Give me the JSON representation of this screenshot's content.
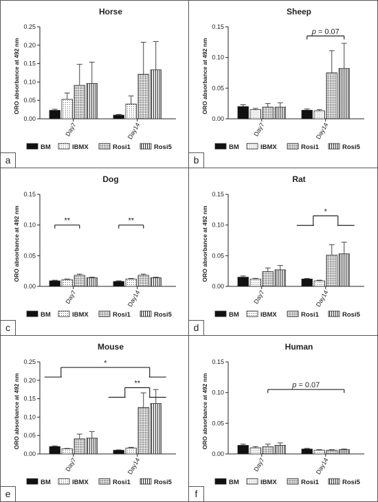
{
  "legend": [
    {
      "name": "BM",
      "pattern": "solid"
    },
    {
      "name": "IBMX",
      "pattern": "dots"
    },
    {
      "name": "Rosi1",
      "pattern": "grid"
    },
    {
      "name": "Rosi5",
      "pattern": "vlines"
    }
  ],
  "ylabel": "ORO absorbance at 492 nm",
  "chart_data": [
    {
      "panel": "a",
      "type": "bar",
      "title": "Horse",
      "categories": [
        "Day7",
        "Day14"
      ],
      "ylim": [
        0,
        0.25
      ],
      "yticks": [
        "0.00",
        "0.05",
        "0.10",
        "0.15",
        "0.20",
        "0.25"
      ],
      "series": [
        {
          "name": "BM",
          "values": [
            0.023,
            0.01
          ],
          "errors": [
            0.003,
            0.002
          ]
        },
        {
          "name": "IBMX",
          "values": [
            0.053,
            0.04
          ],
          "errors": [
            0.017,
            0.022
          ]
        },
        {
          "name": "Rosi1",
          "values": [
            0.091,
            0.121
          ],
          "errors": [
            0.057,
            0.087
          ]
        },
        {
          "name": "Rosi5",
          "values": [
            0.096,
            0.133
          ],
          "errors": [
            0.058,
            0.077
          ]
        }
      ],
      "annotations": []
    },
    {
      "panel": "b",
      "type": "bar",
      "title": "Sheep",
      "categories": [
        "Day7",
        "Day14"
      ],
      "ylim": [
        0,
        0.15
      ],
      "yticks": [
        "0.00",
        "0.05",
        "0.10",
        "0.15"
      ],
      "series": [
        {
          "name": "BM",
          "values": [
            0.02,
            0.014
          ],
          "errors": [
            0.003,
            0.002
          ]
        },
        {
          "name": "IBMX",
          "values": [
            0.015,
            0.013
          ],
          "errors": [
            0.002,
            0.002
          ]
        },
        {
          "name": "Rosi1",
          "values": [
            0.019,
            0.075
          ],
          "errors": [
            0.006,
            0.036
          ]
        },
        {
          "name": "Rosi5",
          "values": [
            0.019,
            0.082
          ],
          "errors": [
            0.007,
            0.041
          ]
        }
      ],
      "annotations": [
        {
          "text": "p = 0.07",
          "italic_p": true,
          "y": 0.135,
          "from": [
            1,
            0
          ],
          "to": [
            1,
            3
          ]
        }
      ]
    },
    {
      "panel": "c",
      "type": "bar",
      "title": "Dog",
      "categories": [
        "Day7",
        "Day14"
      ],
      "ylim": [
        0,
        0.15
      ],
      "yticks": [
        "0.00",
        "0.05",
        "0.10",
        "0.15"
      ],
      "series": [
        {
          "name": "BM",
          "values": [
            0.009,
            0.008
          ],
          "errors": [
            0.001,
            0.001
          ]
        },
        {
          "name": "IBMX",
          "values": [
            0.011,
            0.012
          ],
          "errors": [
            0.001,
            0.001
          ]
        },
        {
          "name": "Rosi1",
          "values": [
            0.018,
            0.018
          ],
          "errors": [
            0.002,
            0.002
          ]
        },
        {
          "name": "Rosi5",
          "values": [
            0.014,
            0.014
          ],
          "errors": [
            0.001,
            0.001
          ]
        }
      ],
      "annotations": [
        {
          "text": "**",
          "y": 0.1,
          "from": [
            0,
            0
          ],
          "to": [
            0,
            2
          ]
        },
        {
          "text": "**",
          "y": 0.1,
          "from": [
            1,
            0
          ],
          "to": [
            1,
            2
          ]
        }
      ]
    },
    {
      "panel": "d",
      "type": "bar",
      "title": "Rat",
      "categories": [
        "Day7",
        "Day14"
      ],
      "ylim": [
        0,
        0.15
      ],
      "yticks": [
        "0.00",
        "0.05",
        "0.10",
        "0.15"
      ],
      "series": [
        {
          "name": "BM",
          "values": [
            0.015,
            0.012
          ],
          "errors": [
            0.002,
            0.001
          ]
        },
        {
          "name": "IBMX",
          "values": [
            0.012,
            0.009
          ],
          "errors": [
            0.001,
            0.001
          ]
        },
        {
          "name": "Rosi1",
          "values": [
            0.024,
            0.051
          ],
          "errors": [
            0.006,
            0.017
          ]
        },
        {
          "name": "Rosi5",
          "values": [
            0.027,
            0.053
          ],
          "errors": [
            0.007,
            0.019
          ]
        }
      ],
      "annotations": [
        {
          "text": "*",
          "y": 0.115,
          "from": [
            1,
            0.5
          ],
          "to": [
            1,
            2.5
          ],
          "groups": true
        }
      ]
    },
    {
      "panel": "e",
      "type": "bar",
      "title": "Mouse",
      "categories": [
        "Day7",
        "Day14"
      ],
      "ylim": [
        0,
        0.25
      ],
      "yticks": [
        "0.00",
        "0.05",
        "0.10",
        "0.15",
        "0.20",
        "0.25"
      ],
      "series": [
        {
          "name": "BM",
          "values": [
            0.02,
            0.01
          ],
          "errors": [
            0.002,
            0.001
          ]
        },
        {
          "name": "IBMX",
          "values": [
            0.014,
            0.016
          ],
          "errors": [
            0.001,
            0.002
          ]
        },
        {
          "name": "Rosi1",
          "values": [
            0.041,
            0.126
          ],
          "errors": [
            0.013,
            0.04
          ]
        },
        {
          "name": "Rosi5",
          "values": [
            0.043,
            0.137
          ],
          "errors": [
            0.018,
            0.038
          ]
        }
      ],
      "annotations": [
        {
          "text": "*",
          "y": 0.235,
          "from": [
            0,
            0.5
          ],
          "to": [
            1,
            2.5
          ],
          "groups": true
        },
        {
          "text": "**",
          "y": 0.18,
          "from": [
            1,
            0.5
          ],
          "to": [
            1,
            2.5
          ],
          "groups": true
        }
      ]
    },
    {
      "panel": "f",
      "type": "bar",
      "title": "Human",
      "categories": [
        "Day7",
        "Day14"
      ],
      "ylim": [
        0,
        0.15
      ],
      "yticks": [
        "0.00",
        "0.05",
        "0.10",
        "0.15"
      ],
      "series": [
        {
          "name": "BM",
          "values": [
            0.014,
            0.008
          ],
          "errors": [
            0.002,
            0.001
          ]
        },
        {
          "name": "IBMX",
          "values": [
            0.01,
            0.006
          ],
          "errors": [
            0.002,
            0.001
          ]
        },
        {
          "name": "Rosi1",
          "values": [
            0.012,
            0.006
          ],
          "errors": [
            0.004,
            0.001
          ]
        },
        {
          "name": "Rosi5",
          "values": [
            0.014,
            0.007
          ],
          "errors": [
            0.004,
            0.001
          ]
        }
      ],
      "annotations": [
        {
          "text": "p = 0.07",
          "italic_p": true,
          "y": 0.105,
          "from": [
            0,
            2
          ],
          "to": [
            1,
            3
          ]
        }
      ]
    }
  ]
}
